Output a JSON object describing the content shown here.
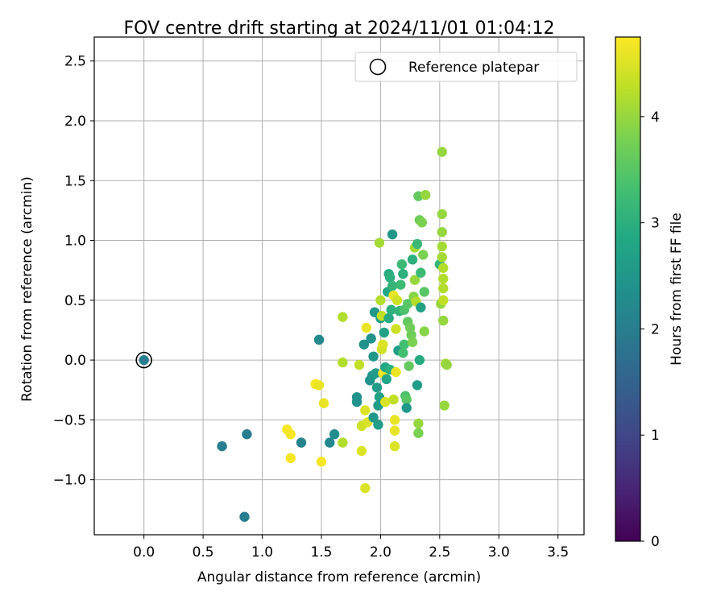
{
  "chart_data": {
    "type": "scatter",
    "title": "FOV centre drift starting at 2024/11/01 01:04:12",
    "xlabel": "Angular distance from reference (arcmin)",
    "ylabel": "Rotation from reference (arcmin)",
    "colorbar_label": "Hours from first FF file",
    "xlim": [
      -0.42,
      3.72
    ],
    "ylim": [
      -1.46,
      2.7
    ],
    "clim": [
      0,
      4.75
    ],
    "colormap": "viridis",
    "grid": true,
    "legend_position": "top-right",
    "x_ticks": [
      0.0,
      0.5,
      1.0,
      1.5,
      2.0,
      2.5,
      3.0,
      3.5
    ],
    "x_tick_labels": [
      "0.0",
      "0.5",
      "1.0",
      "1.5",
      "2.0",
      "2.5",
      "3.0",
      "3.5"
    ],
    "y_ticks": [
      -1.0,
      -0.5,
      0.0,
      0.5,
      1.0,
      1.5,
      2.0,
      2.5
    ],
    "y_tick_labels": [
      "−1.0",
      "−0.5",
      "0.0",
      "0.5",
      "1.0",
      "1.5",
      "2.0",
      "2.5"
    ],
    "colorbar_ticks": [
      0,
      1,
      2,
      3,
      4
    ],
    "colorbar_tick_labels": [
      "0",
      "1",
      "2",
      "3",
      "4"
    ],
    "reference": {
      "label": "Reference platepar",
      "x": 0.0,
      "y": 0.0
    },
    "points": [
      {
        "x": 0.0,
        "y": 0.0,
        "c": 2.0
      },
      {
        "x": 0.66,
        "y": -0.72,
        "c": 2.0
      },
      {
        "x": 0.87,
        "y": -0.62,
        "c": 2.0
      },
      {
        "x": 0.85,
        "y": -1.31,
        "c": 2.0
      },
      {
        "x": 1.33,
        "y": -0.69,
        "c": 2.1
      },
      {
        "x": 1.48,
        "y": 0.17,
        "c": 2.2
      },
      {
        "x": 1.57,
        "y": -0.69,
        "c": 2.2
      },
      {
        "x": 1.61,
        "y": -0.62,
        "c": 2.3
      },
      {
        "x": 1.21,
        "y": -0.58,
        "c": 4.7
      },
      {
        "x": 1.24,
        "y": -0.62,
        "c": 4.7
      },
      {
        "x": 1.24,
        "y": -0.82,
        "c": 4.7
      },
      {
        "x": 1.45,
        "y": -0.2,
        "c": 4.7
      },
      {
        "x": 1.48,
        "y": -0.21,
        "c": 4.6
      },
      {
        "x": 1.52,
        "y": -0.36,
        "c": 4.6
      },
      {
        "x": 1.5,
        "y": -0.85,
        "c": 4.7
      },
      {
        "x": 1.68,
        "y": 0.36,
        "c": 4.2
      },
      {
        "x": 1.68,
        "y": -0.02,
        "c": 4.2
      },
      {
        "x": 1.68,
        "y": -0.69,
        "c": 4.2
      },
      {
        "x": 1.8,
        "y": -0.31,
        "c": 2.4
      },
      {
        "x": 1.8,
        "y": -0.35,
        "c": 2.4
      },
      {
        "x": 1.82,
        "y": -0.04,
        "c": 4.3
      },
      {
        "x": 1.84,
        "y": -0.55,
        "c": 4.4
      },
      {
        "x": 1.84,
        "y": -0.76,
        "c": 4.5
      },
      {
        "x": 1.86,
        "y": 0.13,
        "c": 2.4
      },
      {
        "x": 1.87,
        "y": -0.42,
        "c": 4.5
      },
      {
        "x": 1.87,
        "y": -1.07,
        "c": 4.5
      },
      {
        "x": 1.88,
        "y": 0.27,
        "c": 4.6
      },
      {
        "x": 1.89,
        "y": -0.52,
        "c": 4.5
      },
      {
        "x": 1.91,
        "y": -0.17,
        "c": 2.4
      },
      {
        "x": 1.92,
        "y": 0.18,
        "c": 2.4
      },
      {
        "x": 1.93,
        "y": -0.13,
        "c": 2.5
      },
      {
        "x": 1.94,
        "y": -0.48,
        "c": 2.5
      },
      {
        "x": 1.94,
        "y": 0.03,
        "c": 2.5
      },
      {
        "x": 1.95,
        "y": 0.4,
        "c": 2.5
      },
      {
        "x": 1.96,
        "y": -0.11,
        "c": 2.6
      },
      {
        "x": 1.97,
        "y": -0.23,
        "c": 2.6
      },
      {
        "x": 1.98,
        "y": -0.54,
        "c": 2.6
      },
      {
        "x": 1.98,
        "y": -0.38,
        "c": 2.6
      },
      {
        "x": 1.99,
        "y": -0.31,
        "c": 2.7
      },
      {
        "x": 1.99,
        "y": 0.98,
        "c": 4.1
      },
      {
        "x": 2.0,
        "y": 0.5,
        "c": 4.2
      },
      {
        "x": 2.0,
        "y": 0.35,
        "c": 2.6
      },
      {
        "x": 2.01,
        "y": 0.37,
        "c": 4.3
      },
      {
        "x": 2.01,
        "y": 0.09,
        "c": 4.4
      },
      {
        "x": 2.02,
        "y": 0.13,
        "c": 4.5
      },
      {
        "x": 2.02,
        "y": -0.11,
        "c": 4.6
      },
      {
        "x": 2.03,
        "y": -0.11,
        "c": 4.7
      },
      {
        "x": 2.03,
        "y": 0.23,
        "c": 2.7
      },
      {
        "x": 2.04,
        "y": -0.35,
        "c": 4.5
      },
      {
        "x": 2.04,
        "y": -0.06,
        "c": 2.8
      },
      {
        "x": 2.05,
        "y": -0.16,
        "c": 2.8
      },
      {
        "x": 2.06,
        "y": 0.57,
        "c": 2.8
      },
      {
        "x": 2.07,
        "y": 0.35,
        "c": 2.9
      },
      {
        "x": 2.07,
        "y": 0.72,
        "c": 2.9
      },
      {
        "x": 2.08,
        "y": 0.69,
        "c": 3.0
      },
      {
        "x": 2.08,
        "y": -0.08,
        "c": 3.0
      },
      {
        "x": 2.09,
        "y": 0.42,
        "c": 3.0
      },
      {
        "x": 2.1,
        "y": 0.62,
        "c": 3.1
      },
      {
        "x": 2.1,
        "y": 1.05,
        "c": 2.5
      },
      {
        "x": 2.11,
        "y": 0.54,
        "c": 4.6
      },
      {
        "x": 2.11,
        "y": -0.33,
        "c": 4.3
      },
      {
        "x": 2.12,
        "y": -0.5,
        "c": 4.6
      },
      {
        "x": 2.12,
        "y": -0.59,
        "c": 4.6
      },
      {
        "x": 2.12,
        "y": -0.72,
        "c": 4.5
      },
      {
        "x": 2.13,
        "y": 0.26,
        "c": 4.4
      },
      {
        "x": 2.13,
        "y": -0.1,
        "c": 4.6
      },
      {
        "x": 2.14,
        "y": 0.5,
        "c": 4.4
      },
      {
        "x": 2.15,
        "y": 0.08,
        "c": 2.6
      },
      {
        "x": 2.16,
        "y": 0.41,
        "c": 3.1
      },
      {
        "x": 2.17,
        "y": 0.63,
        "c": 3.2
      },
      {
        "x": 2.18,
        "y": 0.8,
        "c": 3.2
      },
      {
        "x": 2.19,
        "y": 0.72,
        "c": 3.0
      },
      {
        "x": 2.19,
        "y": 0.06,
        "c": 3.3
      },
      {
        "x": 2.2,
        "y": 0.13,
        "c": 3.3
      },
      {
        "x": 2.2,
        "y": 0.42,
        "c": 3.4
      },
      {
        "x": 2.21,
        "y": -0.3,
        "c": 3.4
      },
      {
        "x": 2.22,
        "y": -0.33,
        "c": 3.5
      },
      {
        "x": 2.22,
        "y": -0.4,
        "c": 2.5
      },
      {
        "x": 2.23,
        "y": 0.47,
        "c": 3.5
      },
      {
        "x": 2.23,
        "y": 0.32,
        "c": 3.6
      },
      {
        "x": 2.24,
        "y": -0.05,
        "c": 3.6
      },
      {
        "x": 2.25,
        "y": 0.27,
        "c": 3.7
      },
      {
        "x": 2.26,
        "y": 0.21,
        "c": 3.7
      },
      {
        "x": 2.27,
        "y": 0.15,
        "c": 3.8
      },
      {
        "x": 2.27,
        "y": 0.84,
        "c": 3.0
      },
      {
        "x": 2.28,
        "y": 0.53,
        "c": 3.9
      },
      {
        "x": 2.29,
        "y": 0.67,
        "c": 4.0
      },
      {
        "x": 2.29,
        "y": 0.94,
        "c": 4.1
      },
      {
        "x": 2.3,
        "y": 0.49,
        "c": 4.2
      },
      {
        "x": 2.31,
        "y": 0.97,
        "c": 3.2
      },
      {
        "x": 2.31,
        "y": -0.21,
        "c": 2.6
      },
      {
        "x": 2.32,
        "y": 1.37,
        "c": 3.6
      },
      {
        "x": 2.32,
        "y": -0.53,
        "c": 4.0
      },
      {
        "x": 2.32,
        "y": -0.61,
        "c": 3.8
      },
      {
        "x": 2.33,
        "y": 1.17,
        "c": 3.7
      },
      {
        "x": 2.33,
        "y": 0.0,
        "c": 2.9
      },
      {
        "x": 2.34,
        "y": 0.44,
        "c": 2.7
      },
      {
        "x": 2.34,
        "y": 0.73,
        "c": 3.2
      },
      {
        "x": 2.35,
        "y": 1.15,
        "c": 3.8
      },
      {
        "x": 2.36,
        "y": 0.88,
        "c": 3.8
      },
      {
        "x": 2.37,
        "y": 0.57,
        "c": 3.5
      },
      {
        "x": 2.37,
        "y": 0.24,
        "c": 3.9
      },
      {
        "x": 2.38,
        "y": 1.38,
        "c": 4.0
      },
      {
        "x": 2.5,
        "y": 0.8,
        "c": 3.1
      },
      {
        "x": 2.51,
        "y": 0.47,
        "c": 4.0
      },
      {
        "x": 2.52,
        "y": 1.74,
        "c": 4.0
      },
      {
        "x": 2.52,
        "y": 1.22,
        "c": 4.0
      },
      {
        "x": 2.52,
        "y": 1.07,
        "c": 4.0
      },
      {
        "x": 2.52,
        "y": 0.95,
        "c": 4.1
      },
      {
        "x": 2.52,
        "y": 0.86,
        "c": 4.1
      },
      {
        "x": 2.53,
        "y": 0.77,
        "c": 4.2
      },
      {
        "x": 2.53,
        "y": 0.68,
        "c": 4.2
      },
      {
        "x": 2.53,
        "y": 0.6,
        "c": 4.2
      },
      {
        "x": 2.53,
        "y": 0.5,
        "c": 4.3
      },
      {
        "x": 2.53,
        "y": 0.33,
        "c": 4.0
      },
      {
        "x": 2.54,
        "y": -0.38,
        "c": 4.0
      },
      {
        "x": 2.55,
        "y": -0.03,
        "c": 4.1
      },
      {
        "x": 2.56,
        "y": -0.04,
        "c": 4.0
      }
    ]
  }
}
